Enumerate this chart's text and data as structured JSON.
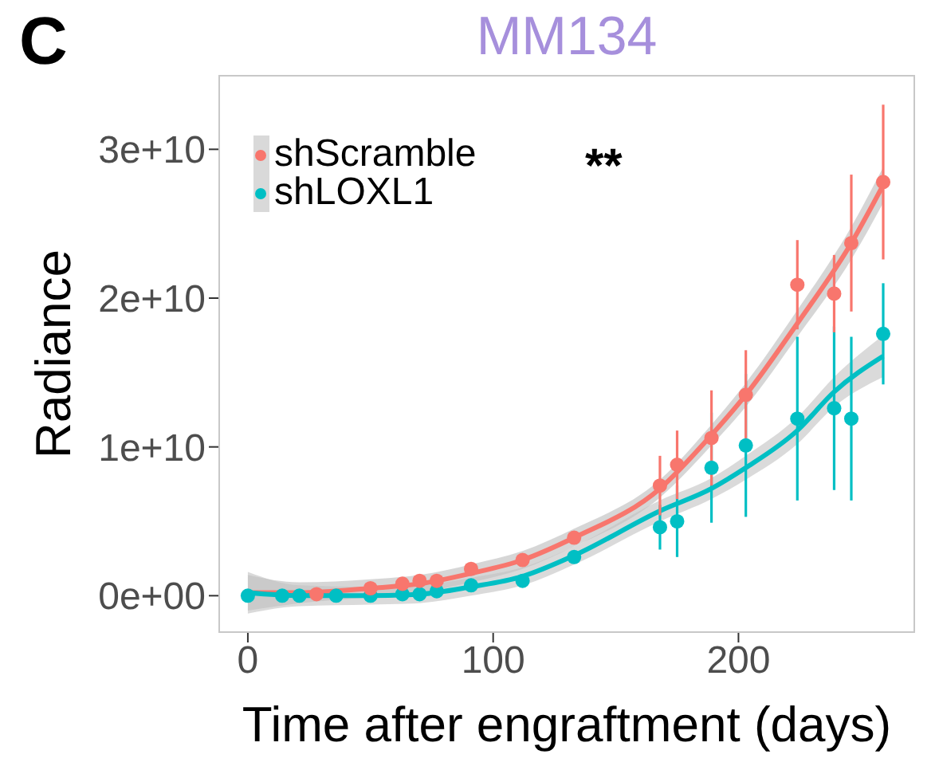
{
  "chart_data": {
    "type": "scatter",
    "title": "MM134",
    "xlabel": "Time after engraftment (days)",
    "ylabel": "Radiance",
    "annotations": [
      "C",
      "**"
    ],
    "xlim": [
      -12,
      272
    ],
    "xticks": [
      0,
      100,
      200
    ],
    "ylim": [
      -2500000000,
      35000000000
    ],
    "yticks": [
      {
        "value": 0,
        "label": "0e+00"
      },
      {
        "value": 10000000000,
        "label": "1e+10"
      },
      {
        "value": 20000000000,
        "label": "2e+10"
      },
      {
        "value": 30000000000,
        "label": "3e+10"
      }
    ],
    "legend": "top left",
    "marker": "circle",
    "series": [
      {
        "name": "shScramble",
        "color": "#f8766d",
        "x": [
          28,
          50,
          63,
          70,
          77,
          91,
          112,
          133,
          168,
          175,
          189,
          203,
          224,
          239,
          246,
          259
        ],
        "values": [
          100000000,
          500000000,
          800000000,
          1000000000,
          1000000000,
          1800000000,
          2400000000,
          3900000000,
          7400000000,
          8800000000,
          10600000000,
          13500000000,
          20900000000,
          20300000000,
          23700000000,
          27800000000
        ],
        "errors": [
          null,
          null,
          null,
          null,
          null,
          null,
          null,
          null,
          2000000000,
          2300000000,
          3200000000,
          3000000000,
          3000000000,
          2600000000,
          4600000000,
          5200000000
        ]
      },
      {
        "name": "shLOXL1",
        "color": "#00bfc4",
        "x": [
          0,
          14,
          21,
          36,
          50,
          63,
          70,
          77,
          91,
          112,
          133,
          168,
          175,
          189,
          203,
          224,
          239,
          246,
          259
        ],
        "values": [
          0,
          0,
          0,
          0,
          0,
          100000000,
          100000000,
          300000000,
          700000000,
          1000000000,
          2600000000,
          4600000000,
          5000000000,
          8600000000,
          10100000000,
          11900000000,
          12600000000,
          11900000000,
          17600000000
        ],
        "errors": [
          null,
          null,
          null,
          null,
          null,
          null,
          null,
          null,
          null,
          null,
          null,
          1500000000,
          2400000000,
          3700000000,
          4800000000,
          5500000000,
          5500000000,
          5500000000,
          3400000000
        ]
      },
      {
        "type": "line",
        "marker": "none",
        "color": "#f8766d",
        "x": [
          0,
          21,
          50,
          70,
          91,
          112,
          133,
          168,
          189,
          203,
          224,
          246,
          259
        ],
        "values": [
          200000000,
          200000000,
          500000000,
          800000000,
          1500000000,
          2400000000,
          3900000000,
          7200000000,
          10800000000,
          13500000000,
          18300000000,
          23700000000,
          27600000000
        ],
        "lower": [
          -1000000000,
          -500000000,
          -100000000,
          200000000,
          900000000,
          1800000000,
          3300000000,
          6600000000,
          10100000000,
          12700000000,
          17400000000,
          22600000000,
          26400000000
        ],
        "upper": [
          1400000000,
          900000000,
          1100000000,
          1400000000,
          2100000000,
          3000000000,
          4500000000,
          7800000000,
          11500000000,
          14300000000,
          19200000000,
          24800000000,
          28800000000
        ]
      },
      {
        "type": "line",
        "marker": "none",
        "color": "#00bfc4",
        "x": [
          0,
          21,
          50,
          70,
          91,
          112,
          133,
          168,
          189,
          203,
          224,
          239,
          259
        ],
        "values": [
          200000000,
          0,
          0,
          100000000,
          600000000,
          1300000000,
          2700000000,
          5700000000,
          7200000000,
          8600000000,
          11100000000,
          13700000000,
          16100000000
        ],
        "lower": [
          -1200000000,
          -700000000,
          -600000000,
          -500000000,
          0,
          700000000,
          2100000000,
          5000000000,
          6500000000,
          7800000000,
          10200000000,
          12700000000,
          14700000000
        ],
        "upper": [
          1600000000,
          700000000,
          600000000,
          700000000,
          1200000000,
          1900000000,
          3300000000,
          6400000000,
          7900000000,
          9400000000,
          12000000000,
          14700000000,
          17500000000
        ]
      }
    ]
  }
}
